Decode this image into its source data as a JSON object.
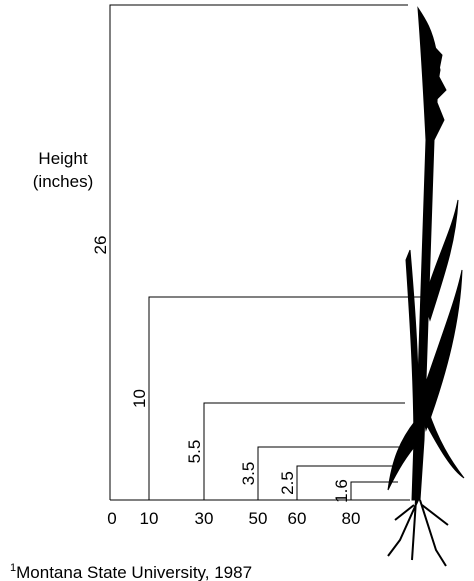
{
  "axis_label": [
    "Height",
    "(inches)"
  ],
  "brackets": [
    {
      "x_label": "0",
      "height_label": "26"
    },
    {
      "x_label": "10",
      "height_label": "10"
    },
    {
      "x_label": "30",
      "height_label": "5.5"
    },
    {
      "x_label": "50",
      "height_label": "3.5"
    },
    {
      "x_label": "60",
      "height_label": "2.5"
    },
    {
      "x_label": "80",
      "height_label": "1.6"
    }
  ],
  "footnote": {
    "marker": "1",
    "text": "Montana State University, 1987"
  }
}
